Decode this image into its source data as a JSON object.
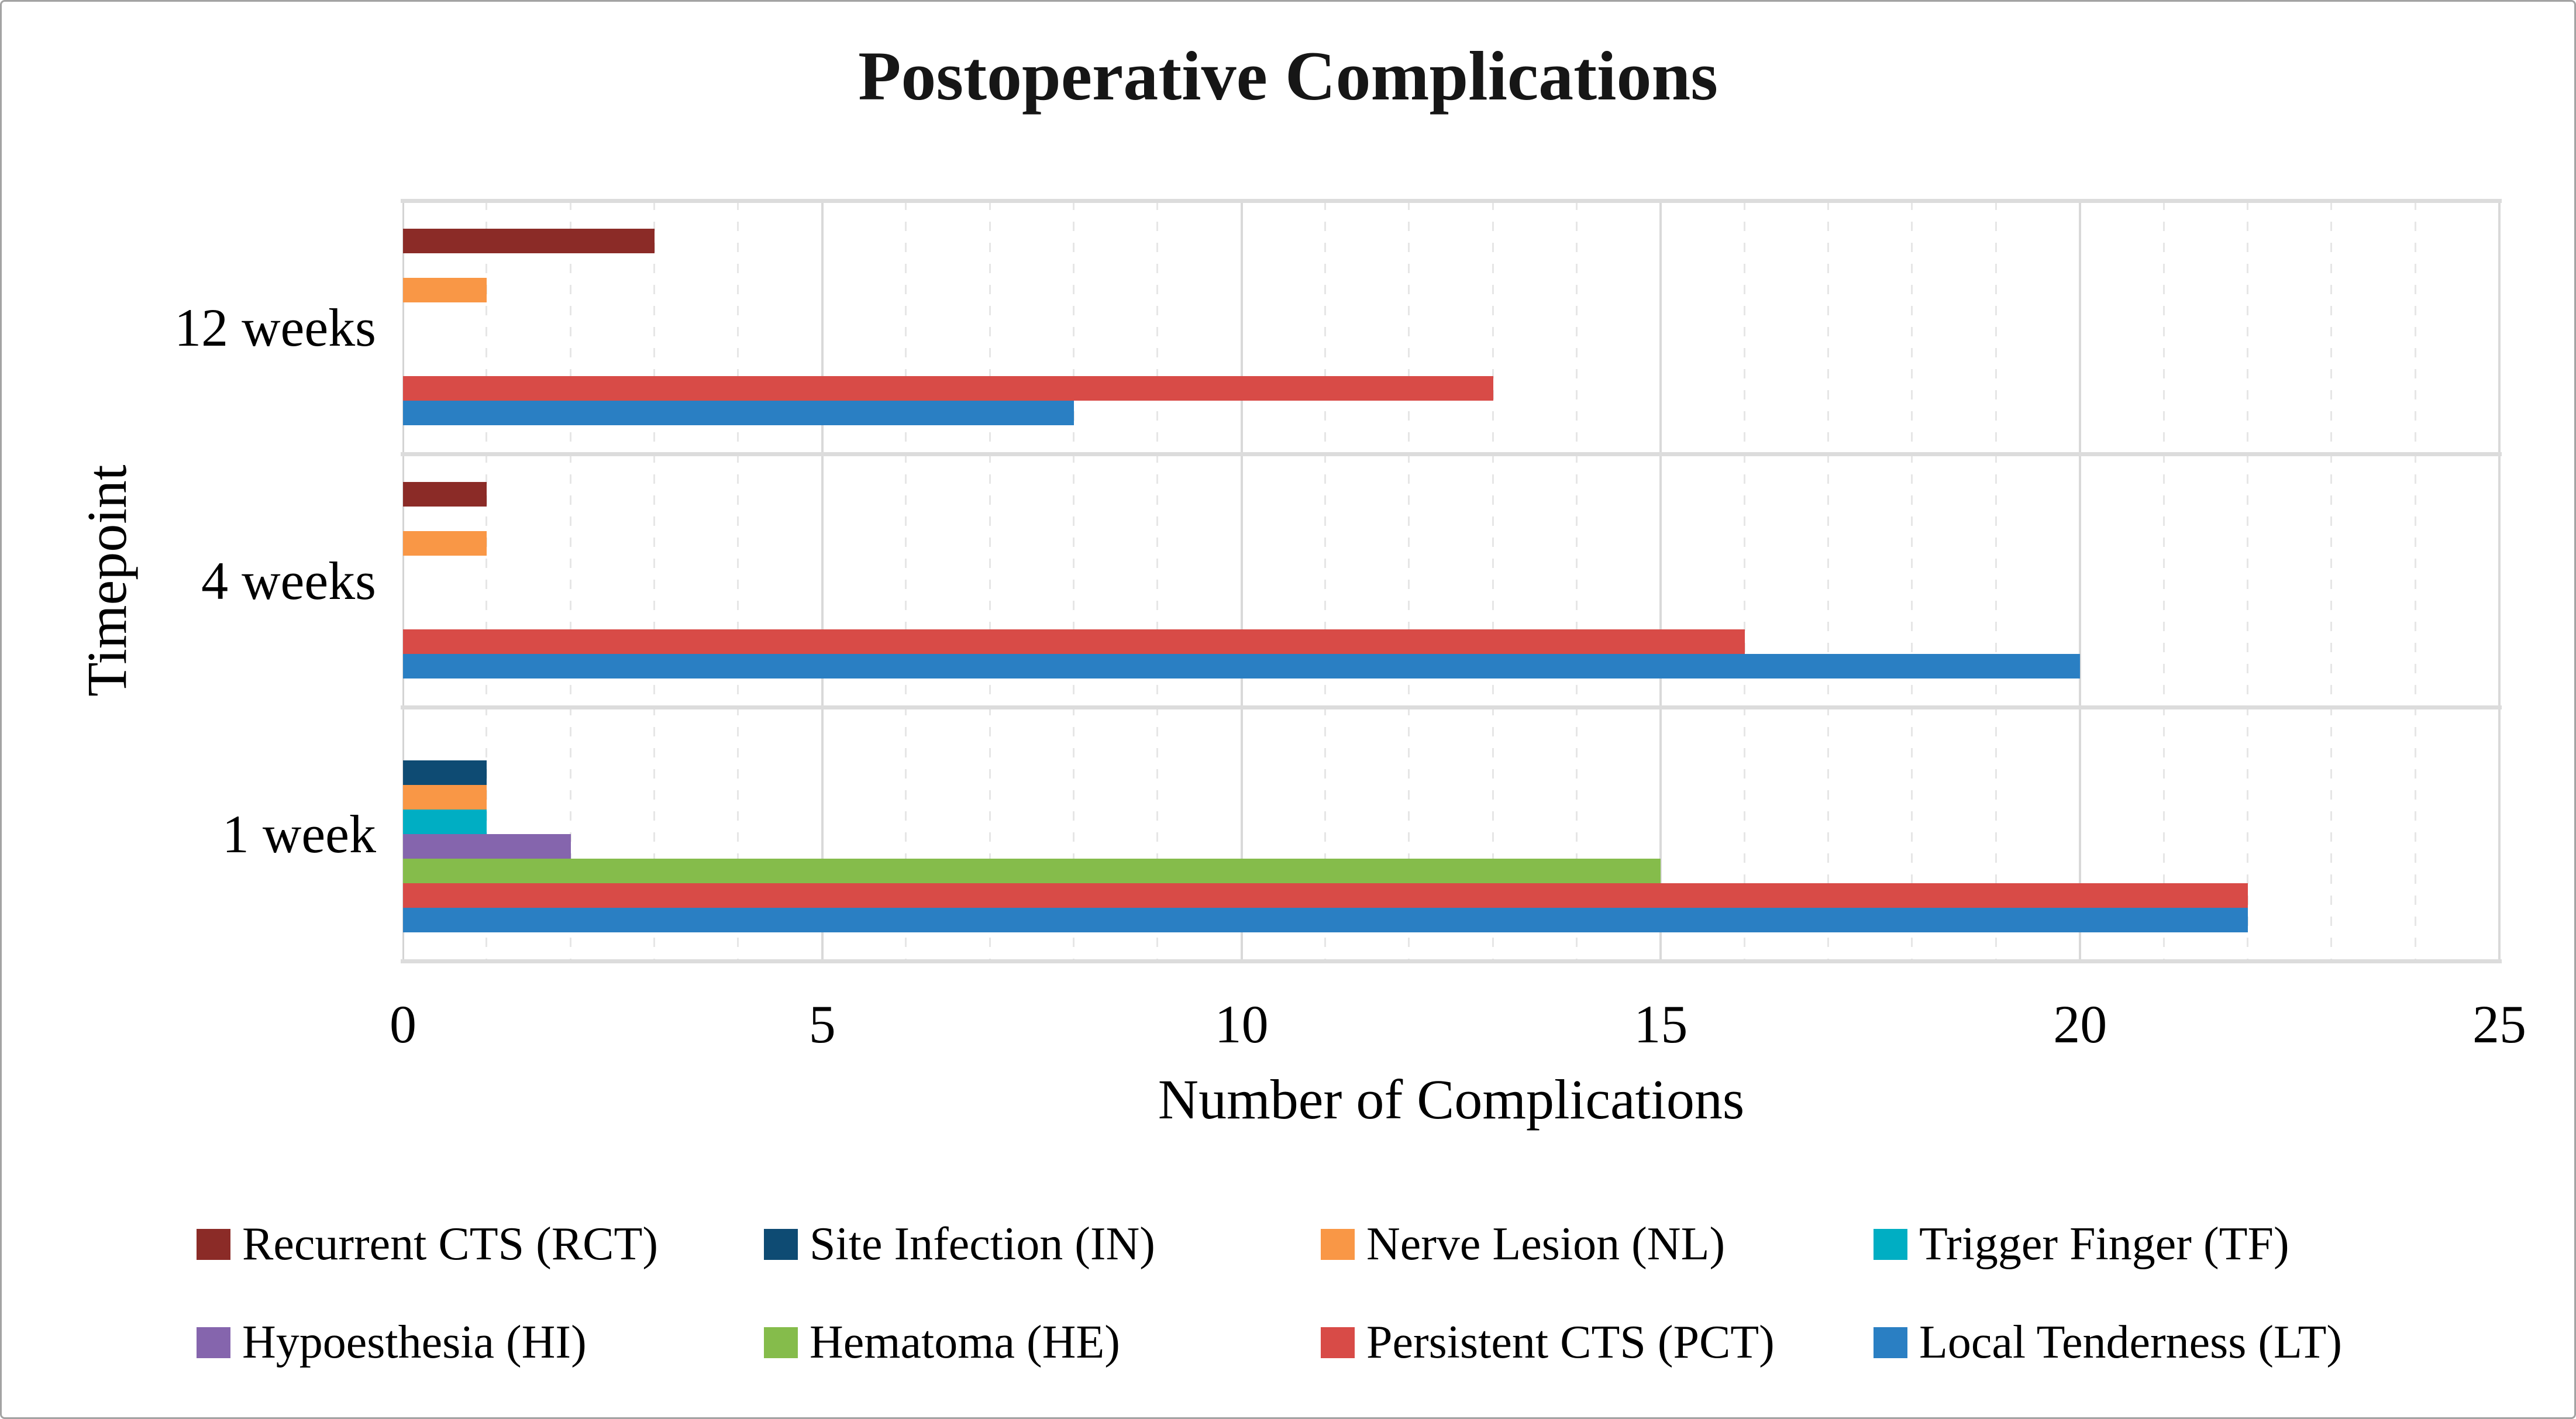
{
  "chart_data": {
    "type": "bar",
    "orientation": "horizontal",
    "title": "Postoperative Complications",
    "xlabel": "Number of Complications",
    "ylabel": "Timepoint",
    "categories": [
      "12 weeks",
      "4 weeks",
      "1 week"
    ],
    "xlim": [
      0,
      25
    ],
    "xticks": [
      0,
      5,
      10,
      15,
      20,
      25
    ],
    "grid": "on",
    "legend_position": "bottom",
    "series": [
      {
        "name": "Recurrent CTS (RCT)",
        "abbr": "RCT",
        "color": "#8B2B27",
        "values": [
          3,
          1,
          0
        ]
      },
      {
        "name": "Site Infection (IN)",
        "abbr": "IN",
        "color": "#0E4B73",
        "values": [
          0,
          0,
          1
        ]
      },
      {
        "name": "Nerve Lesion (NL)",
        "abbr": "NL",
        "color": "#F99746",
        "values": [
          1,
          1,
          1
        ]
      },
      {
        "name": "Trigger Finger (TF)",
        "abbr": "TF",
        "color": "#00AEC3",
        "values": [
          0,
          0,
          1
        ]
      },
      {
        "name": "Hypoesthesia (HI)",
        "abbr": "HI",
        "color": "#8565AD",
        "values": [
          0,
          0,
          2
        ]
      },
      {
        "name": "Hematoma (HE)",
        "abbr": "HE",
        "color": "#85BC4B",
        "values": [
          0,
          0,
          15
        ]
      },
      {
        "name": "Persistent CTS (PCT)",
        "abbr": "PCT",
        "color": "#D84B47",
        "values": [
          13,
          16,
          22
        ]
      },
      {
        "name": "Local Tenderness (LT)",
        "abbr": "LT",
        "color": "#2A7FC3",
        "values": [
          8,
          20,
          22
        ]
      }
    ],
    "gridline_major_color": "#d9d9d9",
    "gridline_minor_color": "#e6e6e6",
    "separator_color": "#dcdcdc"
  }
}
